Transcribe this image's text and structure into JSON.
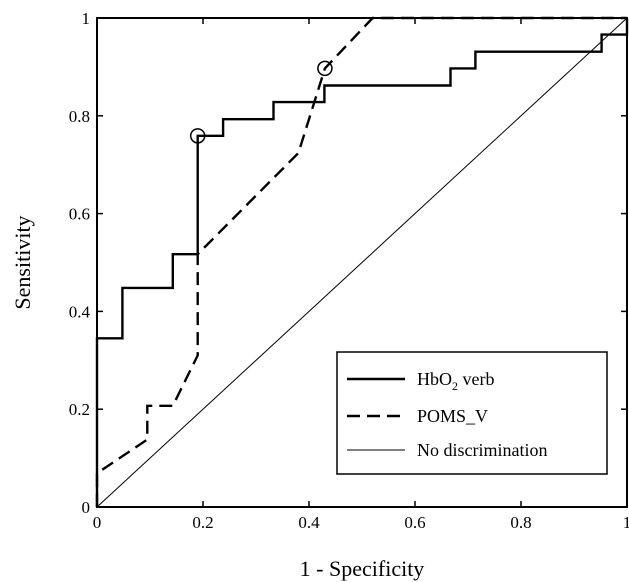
{
  "chart_data": {
    "type": "line",
    "title": "",
    "xlabel": "1 - Specificity",
    "ylabel": "Sensitivity",
    "xlim": [
      0,
      1
    ],
    "ylim": [
      0,
      1
    ],
    "xticks": [
      0,
      0.2,
      0.4,
      0.6,
      0.8,
      1
    ],
    "yticks": [
      0,
      0.2,
      0.4,
      0.6,
      0.8,
      1
    ],
    "xtick_labels": [
      "0",
      "0.2",
      "0.4",
      "0.6",
      "0.8",
      "1"
    ],
    "ytick_labels": [
      "0",
      "0.2",
      "0.4",
      "0.6",
      "0.8",
      "1"
    ],
    "grid": false,
    "legend_position": "bottom-right",
    "series": [
      {
        "name": "HbO2 verb",
        "legend_main": "HbO",
        "legend_sub": "2",
        "legend_rest": " verb",
        "style": "solid",
        "x": [
          0,
          0,
          0.048,
          0.048,
          0.143,
          0.143,
          0.19,
          0.19,
          0.19,
          0.238,
          0.238,
          0.333,
          0.333,
          0.429,
          0.429,
          0.667,
          0.667,
          0.714,
          0.714,
          0.952,
          0.952,
          1,
          1
        ],
        "y": [
          0,
          0.345,
          0.345,
          0.448,
          0.448,
          0.517,
          0.517,
          0.759,
          0.759,
          0.759,
          0.793,
          0.793,
          0.828,
          0.828,
          0.862,
          0.862,
          0.897,
          0.897,
          0.931,
          0.931,
          0.966,
          0.966,
          1
        ],
        "markers": [
          {
            "x": 0.19,
            "y": 0.759,
            "shape": "circle"
          }
        ]
      },
      {
        "name": "POMS_V",
        "style": "dashed",
        "x": [
          0,
          0,
          0.095,
          0.095,
          0.095,
          0.143,
          0.19,
          0.19,
          0.19,
          0.38,
          0.43,
          0.52,
          1
        ],
        "y": [
          0,
          0.069,
          0.138,
          0.138,
          0.207,
          0.207,
          0.31,
          0.517,
          0.517,
          0.724,
          0.897,
          1,
          1
        ],
        "markers": [
          {
            "x": 0.43,
            "y": 0.897,
            "shape": "circle"
          }
        ]
      },
      {
        "name": "No discrimination",
        "style": "thin",
        "x": [
          0,
          1
        ],
        "y": [
          0,
          1
        ]
      }
    ]
  }
}
